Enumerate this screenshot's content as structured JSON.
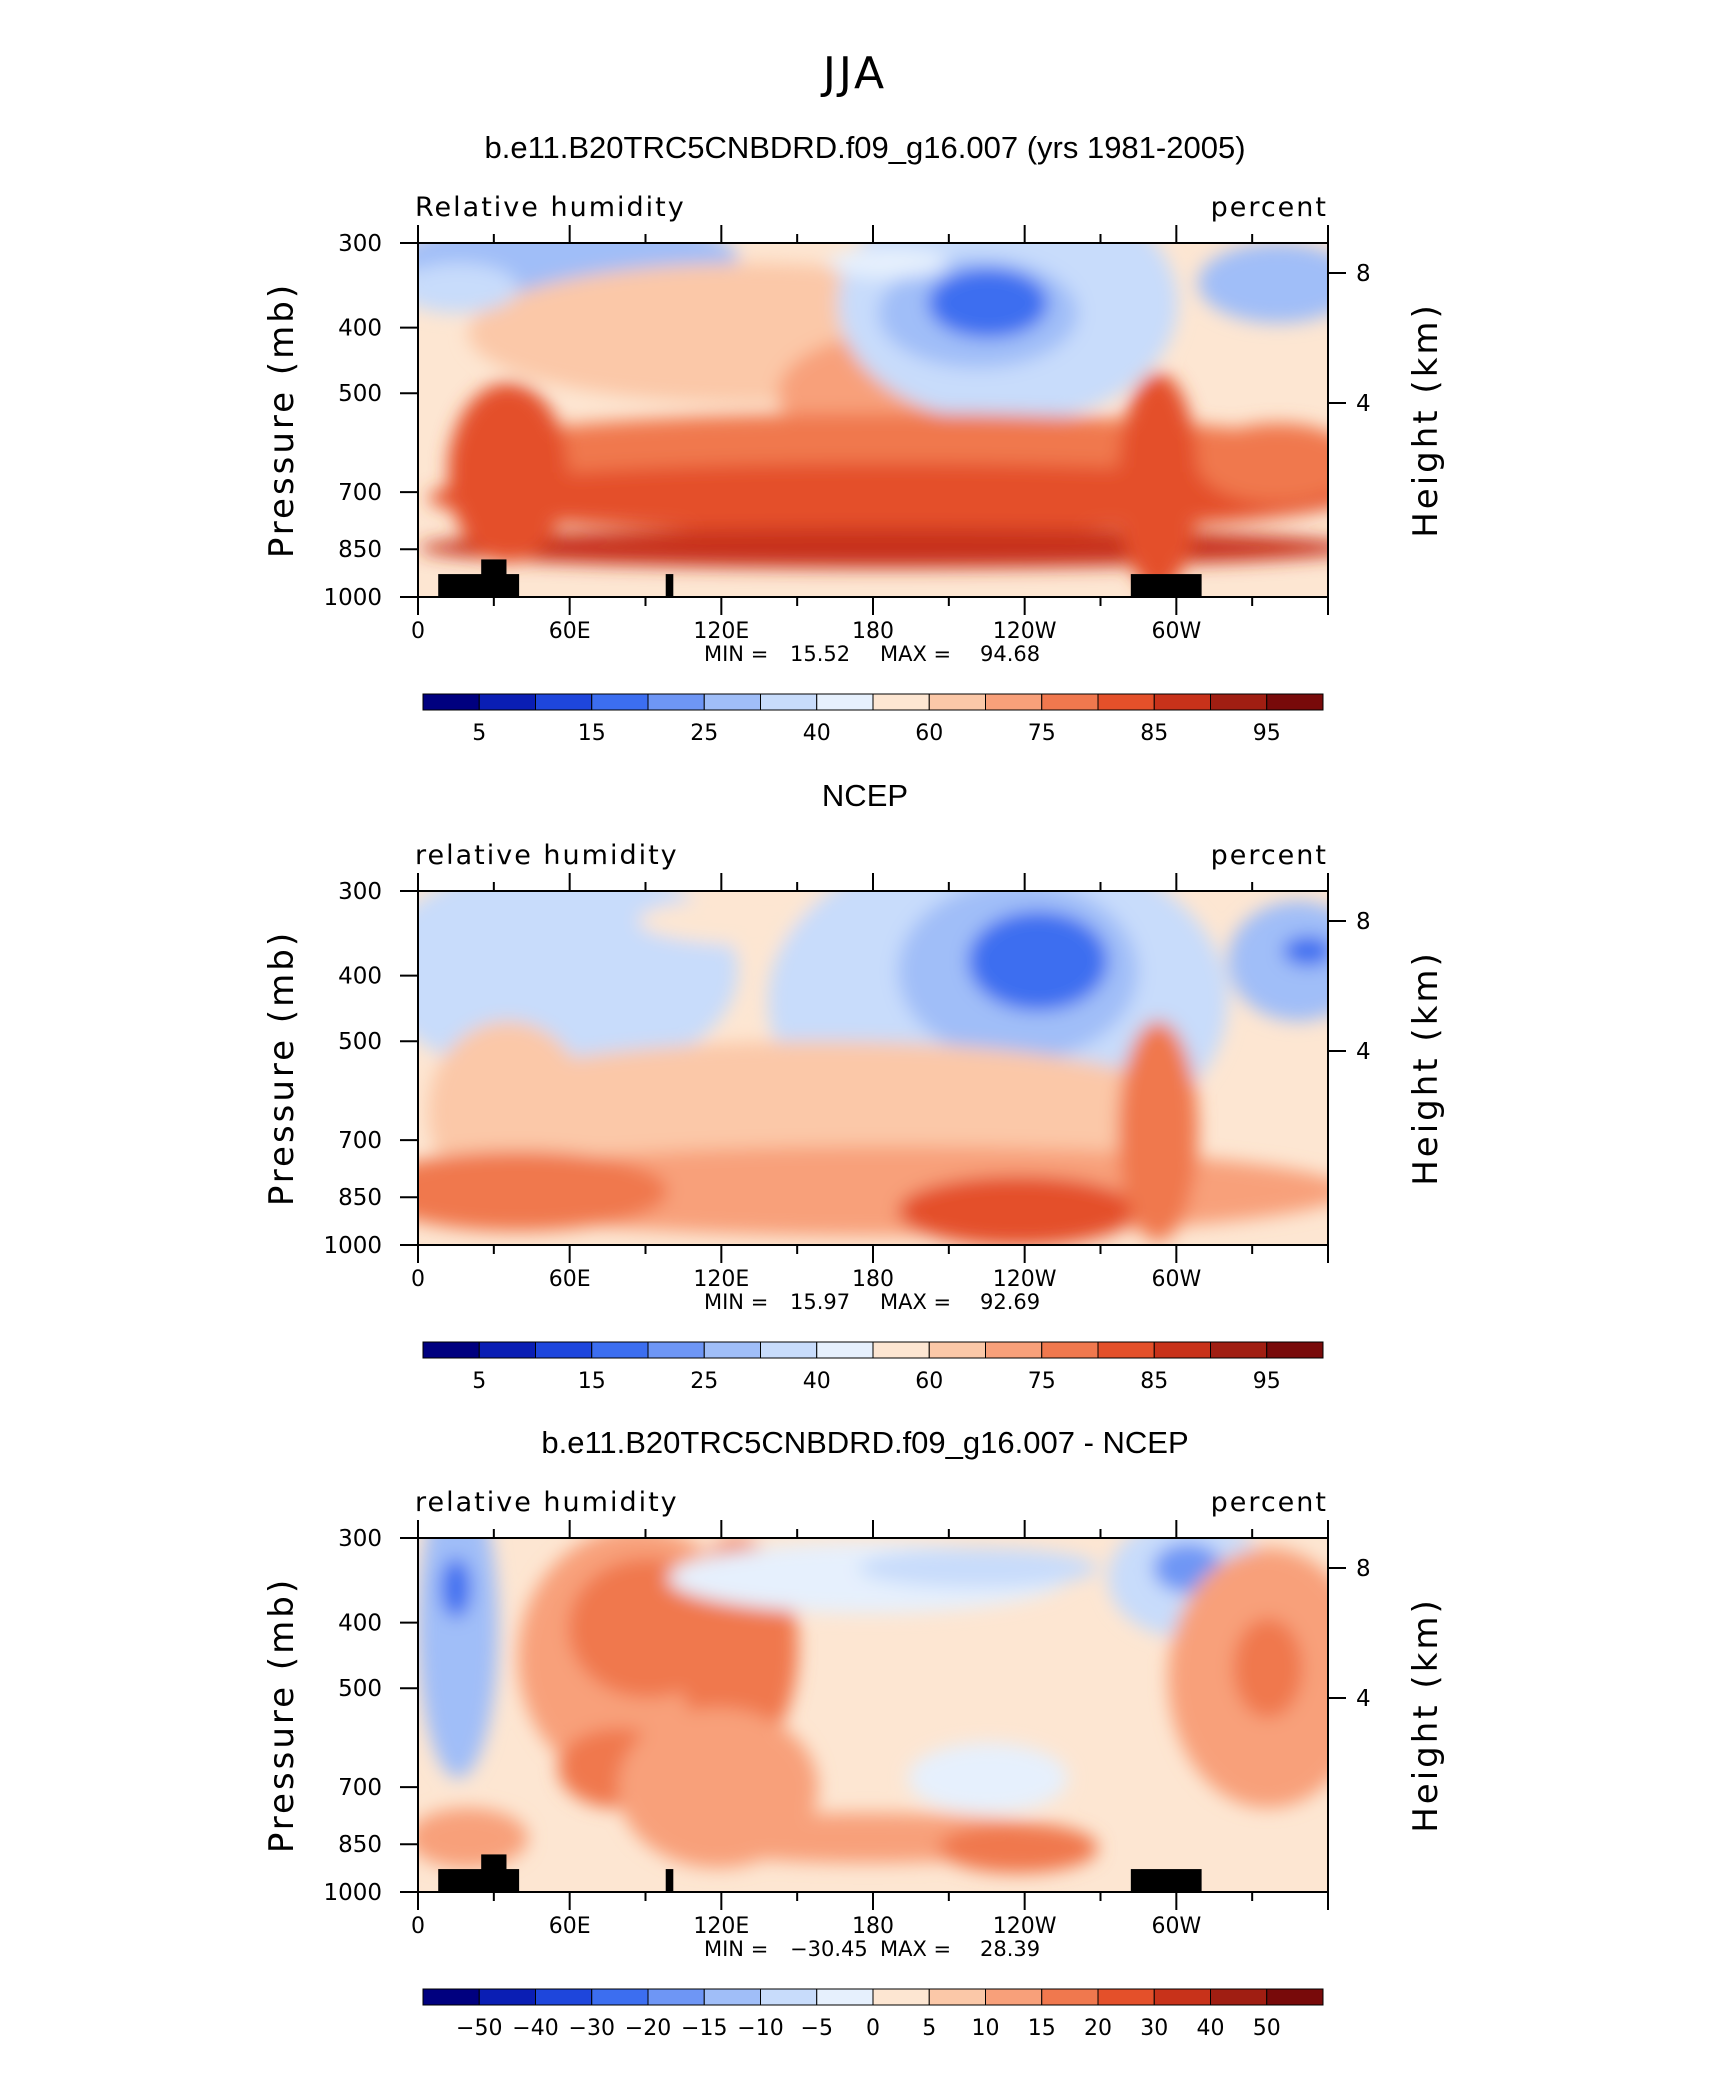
{
  "figure_title": "JJA",
  "chart_data": [
    {
      "type": "heatmap",
      "title": "b.e11.B20TRC5CNBDRD.f09_g16.007 (yrs 1981-2005)",
      "variable_label": "Relative humidity",
      "units_label": "percent",
      "ylabel": "Pressure (mb)",
      "ylabel_right": "Height (km)",
      "pressure_ticks": [
        "300",
        "400",
        "500",
        "700",
        "850",
        "1000"
      ],
      "height_ticks": [
        "8",
        "4"
      ],
      "x_ticks": [
        "0",
        "60E",
        "120E",
        "180",
        "120W",
        "60W"
      ],
      "min_label": "MIN =",
      "min_value": "15.52",
      "max_label": "MAX =",
      "max_value": "94.68",
      "colorbar_labels": [
        "5",
        "15",
        "25",
        "40",
        "60",
        "75",
        "85",
        "95"
      ],
      "ylim": [
        1000,
        300
      ],
      "xlim": [
        0,
        360
      ],
      "grid": false,
      "terrain_mask": true
    },
    {
      "type": "heatmap",
      "title": "NCEP",
      "variable_label": "relative humidity",
      "units_label": "percent",
      "ylabel": "Pressure (mb)",
      "ylabel_right": "Height (km)",
      "pressure_ticks": [
        "300",
        "400",
        "500",
        "700",
        "850",
        "1000"
      ],
      "height_ticks": [
        "8",
        "4"
      ],
      "x_ticks": [
        "0",
        "60E",
        "120E",
        "180",
        "120W",
        "60W"
      ],
      "min_label": "MIN =",
      "min_value": "15.97",
      "max_label": "MAX =",
      "max_value": "92.69",
      "colorbar_labels": [
        "5",
        "15",
        "25",
        "40",
        "60",
        "75",
        "85",
        "95"
      ],
      "ylim": [
        1000,
        300
      ],
      "xlim": [
        0,
        360
      ],
      "grid": false,
      "terrain_mask": false
    },
    {
      "type": "heatmap",
      "title": "b.e11.B20TRC5CNBDRD.f09_g16.007 - NCEP",
      "variable_label": "relative humidity",
      "units_label": "percent",
      "ylabel": "Pressure (mb)",
      "ylabel_right": "Height (km)",
      "pressure_ticks": [
        "300",
        "400",
        "500",
        "700",
        "850",
        "1000"
      ],
      "height_ticks": [
        "8",
        "4"
      ],
      "x_ticks": [
        "0",
        "60E",
        "120E",
        "180",
        "120W",
        "60W"
      ],
      "min_label": "MIN =",
      "min_value": "−30.45",
      "max_label": "MAX =",
      "max_value": "28.39",
      "colorbar_labels": [
        "−50",
        "−40",
        "−30",
        "−20",
        "−15",
        "−10",
        "−5",
        "0",
        "5",
        "10",
        "15",
        "20",
        "30",
        "40",
        "50"
      ],
      "ylim": [
        1000,
        300
      ],
      "xlim": [
        0,
        360
      ],
      "grid": false,
      "terrain_mask": true
    }
  ],
  "colors": {
    "palette": [
      "#00007f",
      "#0a1eb4",
      "#1e46dc",
      "#3c6ef0",
      "#6e96f5",
      "#a0bef8",
      "#c8dcfb",
      "#e6f0fd",
      "#fde6d2",
      "#fbc8a8",
      "#f8a07a",
      "#f0784e",
      "#e4502a",
      "#c8321a",
      "#a01e12",
      "#780a0a"
    ],
    "terrain": "#000000"
  }
}
